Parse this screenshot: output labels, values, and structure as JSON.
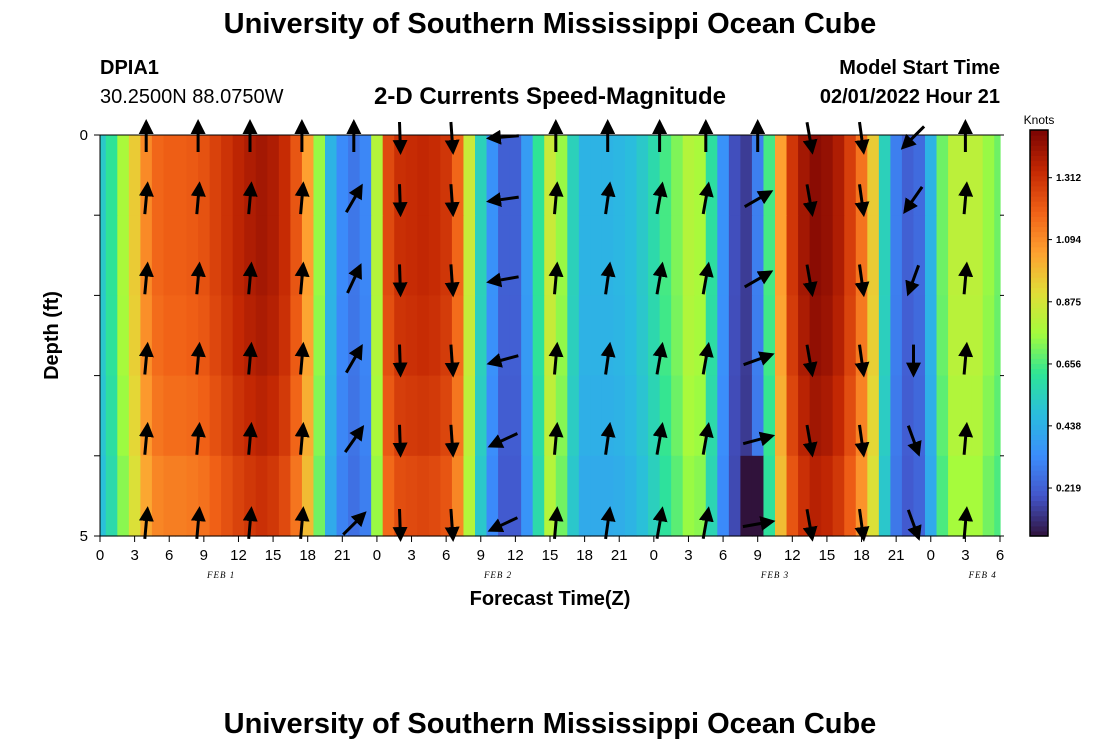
{
  "header": {
    "title": "University of Southern Mississippi Ocean Cube",
    "station_id": "DPIA1",
    "coordinates": "30.2500N  88.0750W",
    "subtitle": "2-D Currents Speed-Magnitude",
    "model_start_label": "Model Start Time",
    "model_start_value": "02/01/2022 Hour 21"
  },
  "footer": {
    "title": "University of Southern Mississippi Ocean Cube"
  },
  "chart_data": {
    "type": "heatmap",
    "title": "2-D Currents Speed-Magnitude",
    "xlabel": "Forecast Time(Z)",
    "ylabel": "Depth (ft)",
    "x_range_hours": [
      0,
      78
    ],
    "ylim": [
      0,
      5
    ],
    "y_tick_labels": [
      "0",
      "5"
    ],
    "x_tick_labels": [
      "0",
      "3",
      "6",
      "9",
      "12",
      "15",
      "18",
      "21",
      "0",
      "3",
      "6",
      "9",
      "12",
      "15",
      "18",
      "21",
      "0",
      "3",
      "6",
      "9",
      "12",
      "15",
      "18",
      "21",
      "0",
      "3",
      "6"
    ],
    "date_labels": [
      {
        "label": "FEB 1",
        "hour": 10.5
      },
      {
        "label": "FEB 2",
        "hour": 34.5
      },
      {
        "label": "FEB 3",
        "hour": 58.5
      },
      {
        "label": "FEB 4",
        "hour": 76.5
      }
    ],
    "colorbar": {
      "unit": "Knots",
      "min": 0.05,
      "max": 1.48,
      "tick_labels": [
        "1.312",
        "1.094",
        "0.875",
        "0.656",
        "0.438",
        "0.219"
      ],
      "tick_values": [
        1.312,
        1.094,
        0.875,
        0.656,
        0.438,
        0.219
      ]
    },
    "speed_profile_hours": [
      0,
      1,
      2,
      3,
      4,
      5,
      6,
      7,
      8,
      9,
      10,
      11,
      12,
      13,
      14,
      15,
      16,
      17,
      18,
      19,
      20,
      21,
      22,
      23,
      24,
      25,
      26,
      27,
      28,
      29,
      30,
      31,
      32,
      33,
      34,
      35,
      36,
      37,
      38,
      39,
      40,
      41,
      42,
      43,
      44,
      45,
      46,
      47,
      48,
      49,
      50,
      51,
      52,
      53,
      54,
      55,
      56,
      57,
      58,
      59,
      60,
      61,
      62,
      63,
      64,
      65,
      66,
      67,
      68,
      69,
      70,
      71,
      72,
      73,
      74,
      75,
      76,
      77,
      78
    ],
    "speed_profile_knots": [
      0.52,
      0.62,
      0.78,
      0.95,
      1.1,
      1.18,
      1.2,
      1.2,
      1.21,
      1.23,
      1.27,
      1.31,
      1.35,
      1.38,
      1.4,
      1.38,
      1.33,
      1.22,
      1.05,
      0.75,
      0.45,
      0.33,
      0.28,
      0.32,
      0.8,
      1.25,
      1.32,
      1.33,
      1.34,
      1.33,
      1.3,
      1.18,
      0.85,
      0.55,
      0.35,
      0.22,
      0.22,
      0.38,
      0.62,
      0.85,
      0.75,
      0.55,
      0.45,
      0.45,
      0.45,
      0.46,
      0.48,
      0.52,
      0.58,
      0.65,
      0.72,
      0.8,
      0.78,
      0.6,
      0.35,
      0.18,
      0.14,
      0.3,
      0.65,
      1.05,
      1.3,
      1.4,
      1.45,
      1.43,
      1.38,
      1.28,
      1.15,
      0.95,
      0.55,
      0.3,
      0.22,
      0.25,
      0.45,
      0.7,
      0.82,
      0.82,
      0.82,
      0.75,
      0.7
    ],
    "depth_row_factor": [
      1.0,
      1.0,
      0.99,
      0.97,
      0.94
    ],
    "shallow_dark_hour": 56.5,
    "vector_times": [
      4,
      8.5,
      13,
      17.5,
      22,
      26,
      30.5,
      35,
      39.5,
      44,
      48.5,
      52.5,
      57,
      61.5,
      66,
      70.5,
      75
    ],
    "vector_depths": [
      0,
      1,
      2,
      3,
      4,
      5
    ],
    "vector_angles_deg": [
      [
        0,
        0,
        0,
        0,
        0,
        178,
        176,
        265,
        0,
        0,
        0,
        0,
        0,
        170,
        172,
        225,
        0
      ],
      [
        5,
        5,
        5,
        5,
        30,
        178,
        176,
        262,
        5,
        8,
        10,
        10,
        60,
        170,
        172,
        215,
        5
      ],
      [
        5,
        5,
        5,
        5,
        25,
        178,
        176,
        260,
        5,
        8,
        10,
        10,
        60,
        170,
        172,
        200,
        5
      ],
      [
        5,
        5,
        5,
        5,
        30,
        178,
        176,
        255,
        5,
        8,
        10,
        10,
        70,
        170,
        172,
        180,
        5
      ],
      [
        5,
        5,
        5,
        5,
        35,
        178,
        176,
        245,
        5,
        8,
        10,
        10,
        75,
        170,
        172,
        160,
        5
      ],
      [
        5,
        5,
        5,
        5,
        45,
        178,
        176,
        245,
        5,
        8,
        10,
        10,
        80,
        170,
        172,
        160,
        5
      ]
    ]
  }
}
